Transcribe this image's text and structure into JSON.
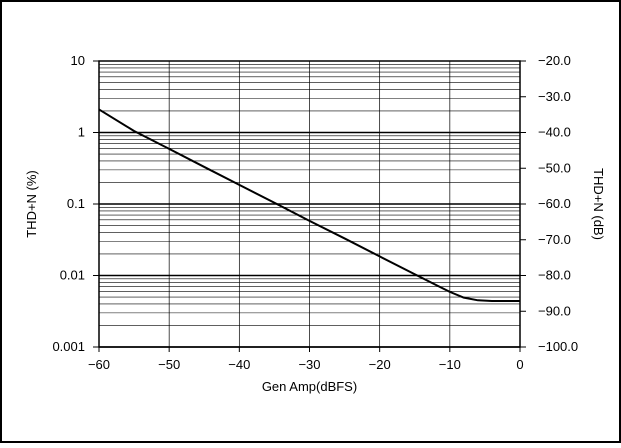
{
  "chart_data": {
    "type": "line",
    "title": "",
    "xlabel": "Gen Amp(dBFS)",
    "ylabel_left": "THD+N (%)",
    "ylabel_right": "THD+N (dB)",
    "xlim": [
      -60,
      0
    ],
    "ylim_left": [
      0.001,
      10
    ],
    "ylim_right": [
      -100,
      -20
    ],
    "y_scale_left": "log",
    "grid": true,
    "x_ticks": [
      -60,
      -50,
      -40,
      -30,
      -20,
      -10,
      0
    ],
    "x_tick_labels": [
      "−60",
      "−50",
      "−40",
      "−30",
      "−20",
      "−10",
      "0"
    ],
    "y_ticks_left": [
      10,
      1,
      0.1,
      0.01,
      0.001
    ],
    "y_tick_labels_left": [
      "10",
      "1",
      "0.1",
      "0.01",
      "0.001"
    ],
    "y_ticks_right": [
      -20,
      -30,
      -40,
      -50,
      -60,
      -70,
      -80,
      -90,
      -100
    ],
    "y_tick_labels_right": [
      "−20.0",
      "−30.0",
      "−40.0",
      "−50.0",
      "−60.0",
      "−70.0",
      "−80.0",
      "−90.0",
      "−100.0"
    ],
    "series": [
      {
        "x": [
          -60,
          -55,
          -50,
          -45,
          -40,
          -35,
          -30,
          -25,
          -20,
          -15,
          -12,
          -10,
          -8,
          -6,
          -4,
          -2,
          0
        ],
        "y": [
          2.1,
          1.05,
          0.59,
          0.33,
          0.185,
          0.104,
          0.058,
          0.033,
          0.0185,
          0.0104,
          0.0074,
          0.0059,
          0.0049,
          0.0045,
          0.0044,
          0.0044,
          0.0044
        ]
      }
    ],
    "colors": {
      "line": "#000000",
      "grid": "#000000",
      "border": "#000000"
    }
  }
}
